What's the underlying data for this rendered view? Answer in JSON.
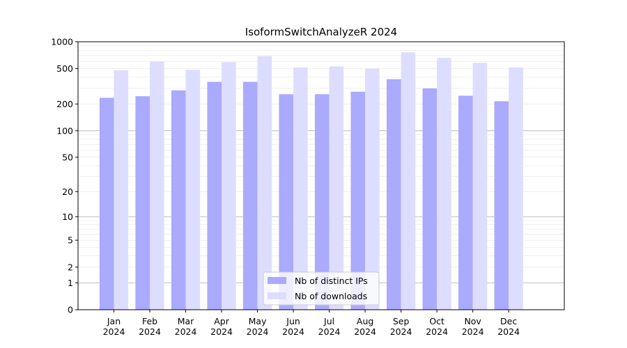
{
  "chart_data": {
    "type": "bar",
    "title": "IsoformSwitchAnalyzeR 2024",
    "xlabel": "",
    "ylabel": "",
    "y_scale": "symlog",
    "ylim": [
      0,
      1000
    ],
    "y_ticks": [
      0,
      1,
      2,
      5,
      10,
      20,
      50,
      100,
      200,
      500,
      1000
    ],
    "y_tick_labels": [
      "0",
      "1",
      "2",
      "5",
      "10",
      "20",
      "50",
      "100",
      "200",
      "500",
      "1000"
    ],
    "grid": true,
    "legend_position": "bottom-center",
    "categories": [
      {
        "month": "Jan",
        "year": "2024"
      },
      {
        "month": "Feb",
        "year": "2024"
      },
      {
        "month": "Mar",
        "year": "2024"
      },
      {
        "month": "Apr",
        "year": "2024"
      },
      {
        "month": "May",
        "year": "2024"
      },
      {
        "month": "Jun",
        "year": "2024"
      },
      {
        "month": "Jul",
        "year": "2024"
      },
      {
        "month": "Aug",
        "year": "2024"
      },
      {
        "month": "Sep",
        "year": "2024"
      },
      {
        "month": "Oct",
        "year": "2024"
      },
      {
        "month": "Nov",
        "year": "2024"
      },
      {
        "month": "Dec",
        "year": "2024"
      }
    ],
    "series": [
      {
        "name": "Nb of distinct IPs",
        "color": "#aaaaff",
        "values": [
          235,
          245,
          285,
          355,
          355,
          258,
          258,
          275,
          380,
          300,
          248,
          215
        ]
      },
      {
        "name": "Nb of downloads",
        "color": "#ddddff",
        "values": [
          480,
          600,
          485,
          590,
          690,
          515,
          530,
          500,
          760,
          660,
          580,
          515
        ]
      }
    ]
  }
}
